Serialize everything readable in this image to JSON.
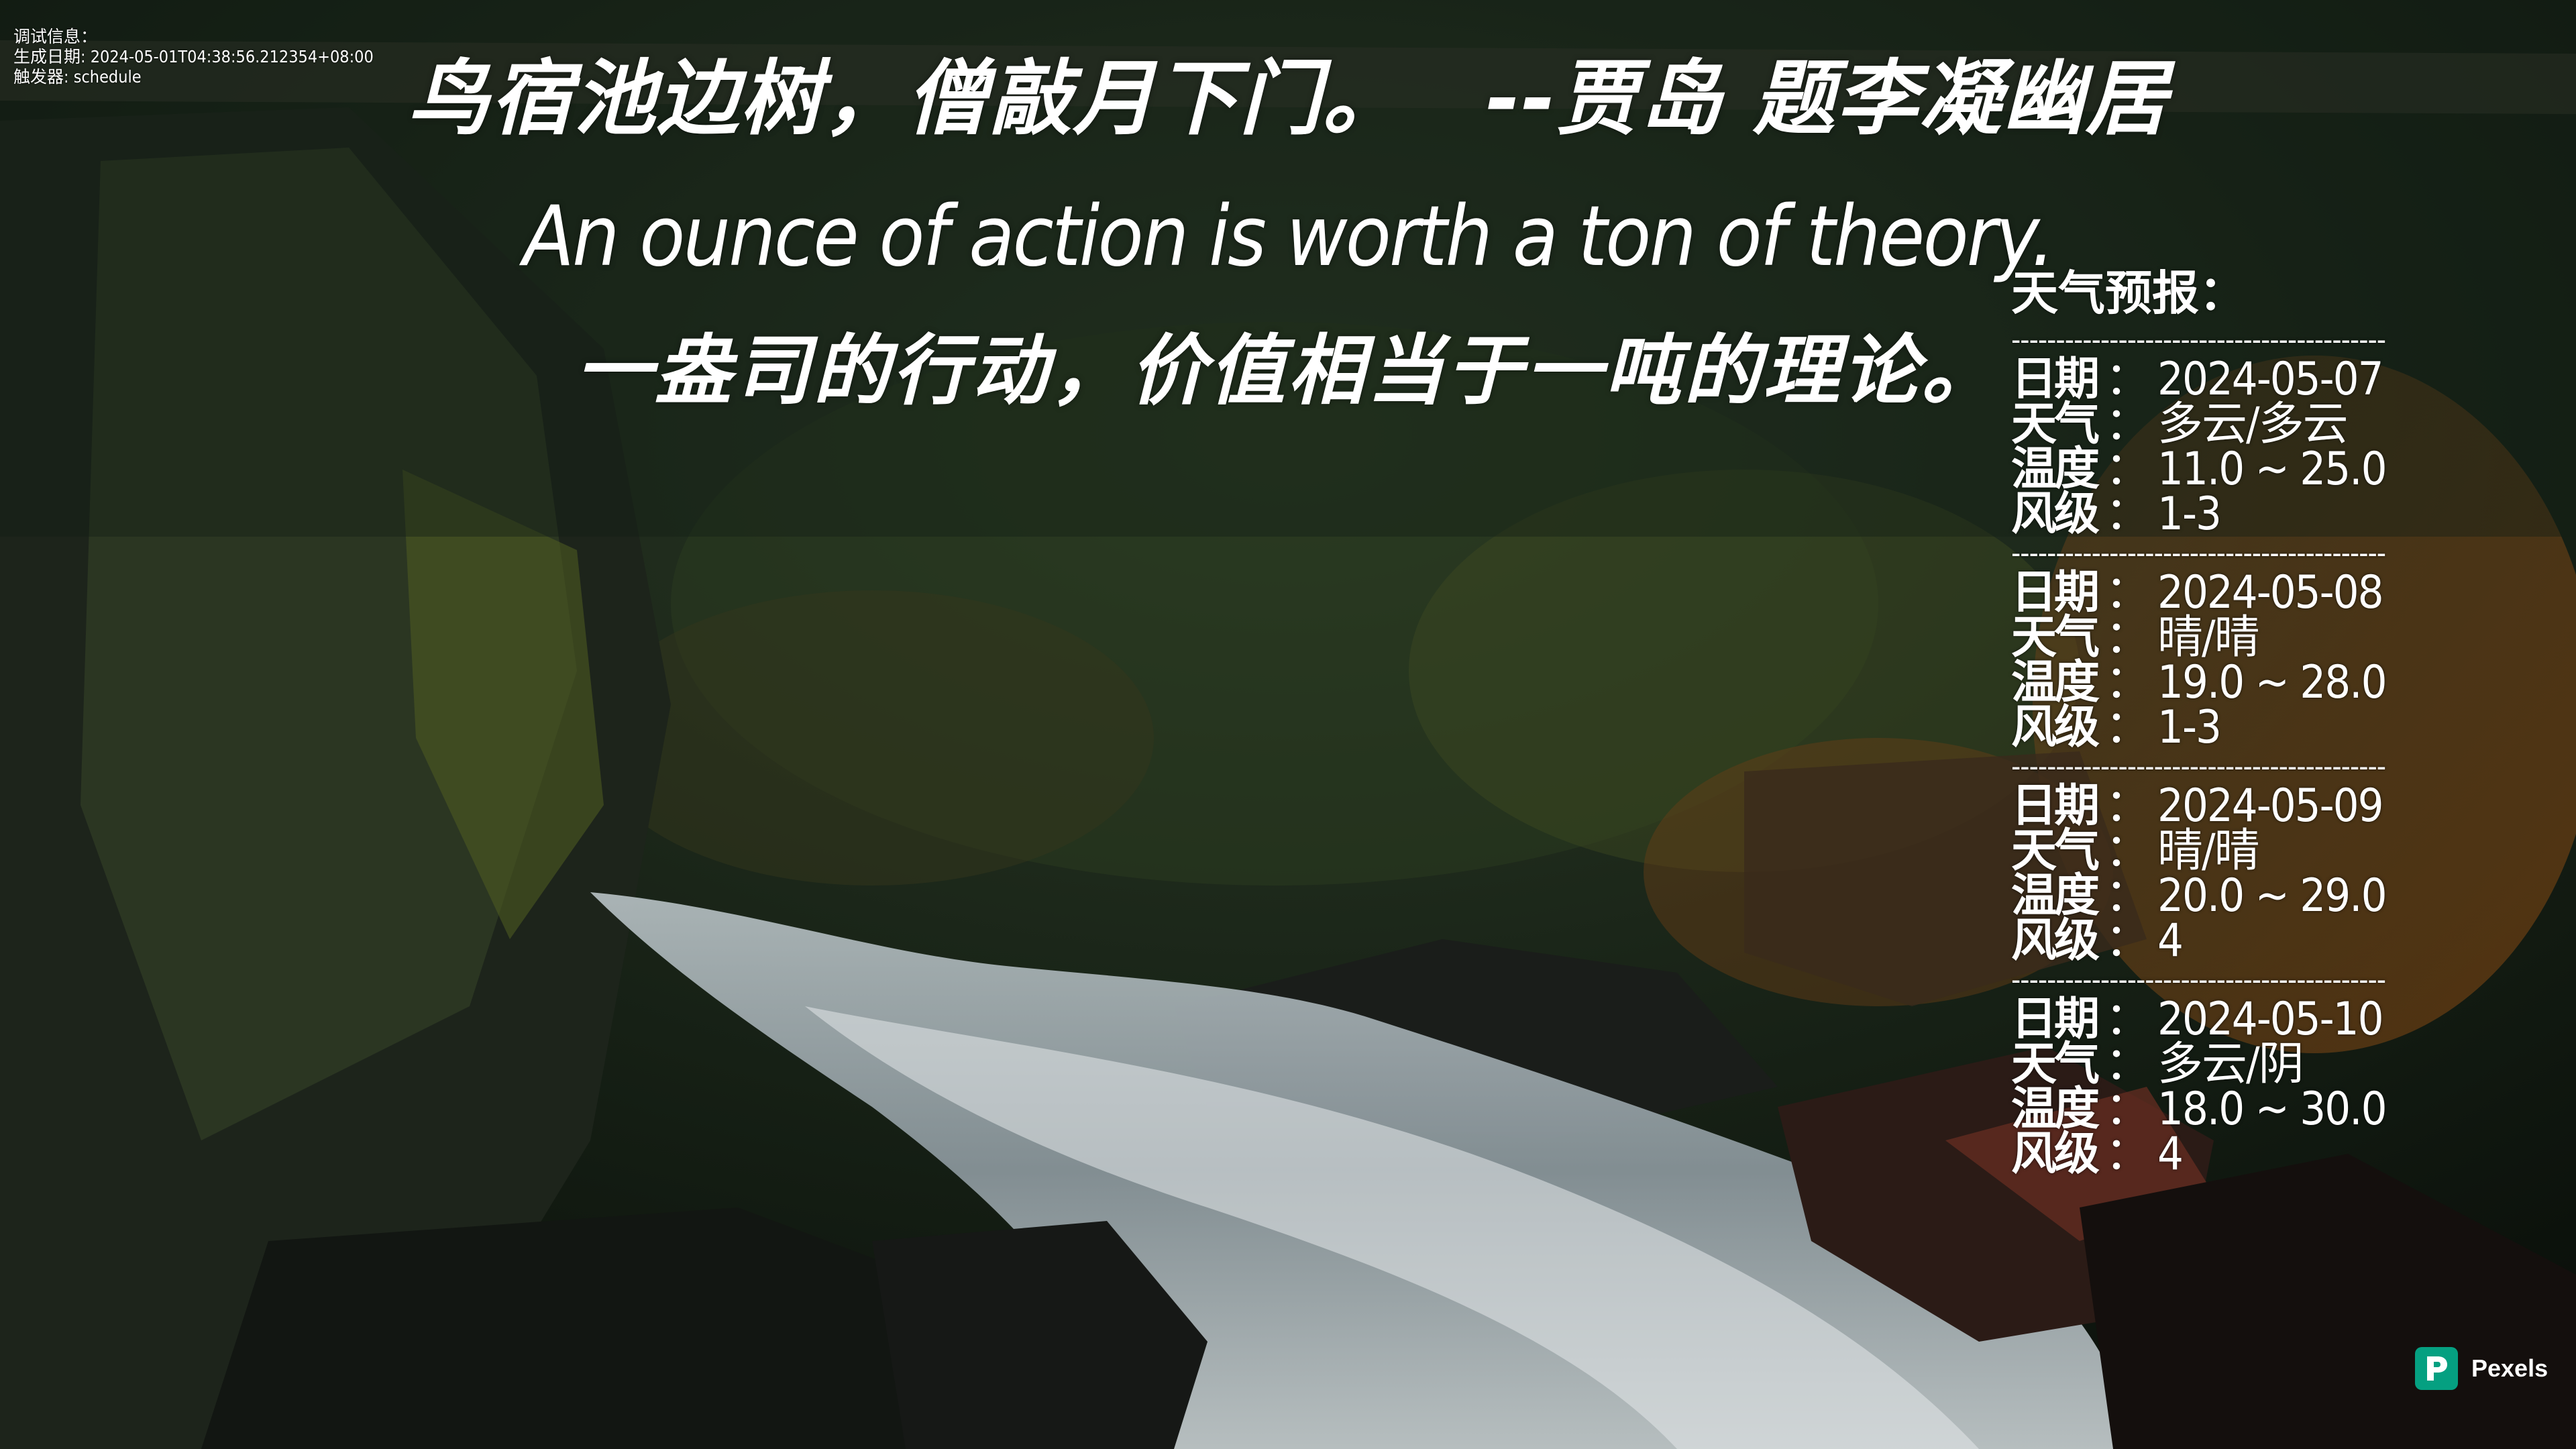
{
  "debug": {
    "label": "调试信息：",
    "generated": "生成日期: 2024-05-01T04:38:56.212354+08:00",
    "trigger": "触发器: schedule"
  },
  "quotes": {
    "poem": "鸟宿池边树，僧敲月下门。",
    "poem_attribution": "--贾岛 题李凝幽居",
    "english": "An ounce of action is worth a ton of theory.",
    "chinese": "一盎司的行动，价值相当于一吨的理论。"
  },
  "weather": {
    "title": "天气预报：",
    "date_key": "日期",
    "weather_key": "天气",
    "temp_key": "温度",
    "wind_key": "风级",
    "separator": "：",
    "days": [
      {
        "date": "2024-05-07",
        "weather": "多云/多云",
        "temp": "11.0 ~ 25.0",
        "wind": "1-3"
      },
      {
        "date": "2024-05-08",
        "weather": "晴/晴",
        "temp": "19.0 ~ 28.0",
        "wind": "1-3"
      },
      {
        "date": "2024-05-09",
        "weather": "晴/晴",
        "temp": "20.0 ~ 29.0",
        "wind": "4"
      },
      {
        "date": "2024-05-10",
        "weather": "多云/阴",
        "temp": "18.0 ~ 30.0",
        "wind": "4"
      }
    ]
  },
  "watermark": {
    "text": "Pexels",
    "icon": "pexels-logo-icon",
    "color": "#05a081"
  }
}
